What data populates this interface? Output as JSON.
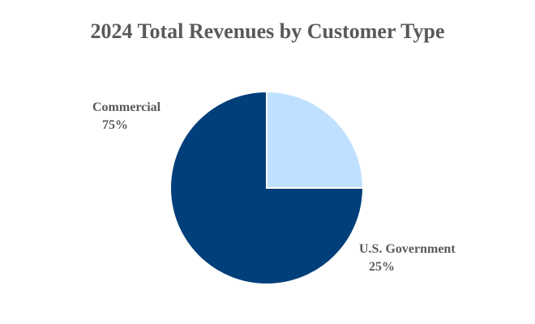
{
  "chart_data": {
    "type": "pie",
    "title": "2024 Total Revenues by Customer Type",
    "slices": [
      {
        "name": "Commercial",
        "value": 75,
        "label": "75%",
        "color": "#003F7A"
      },
      {
        "name": "U.S. Government",
        "value": 25,
        "label": "25%",
        "color": "#BFE1FF"
      }
    ],
    "start_angle_deg": 90,
    "direction": "clockwise",
    "legend": "none"
  }
}
